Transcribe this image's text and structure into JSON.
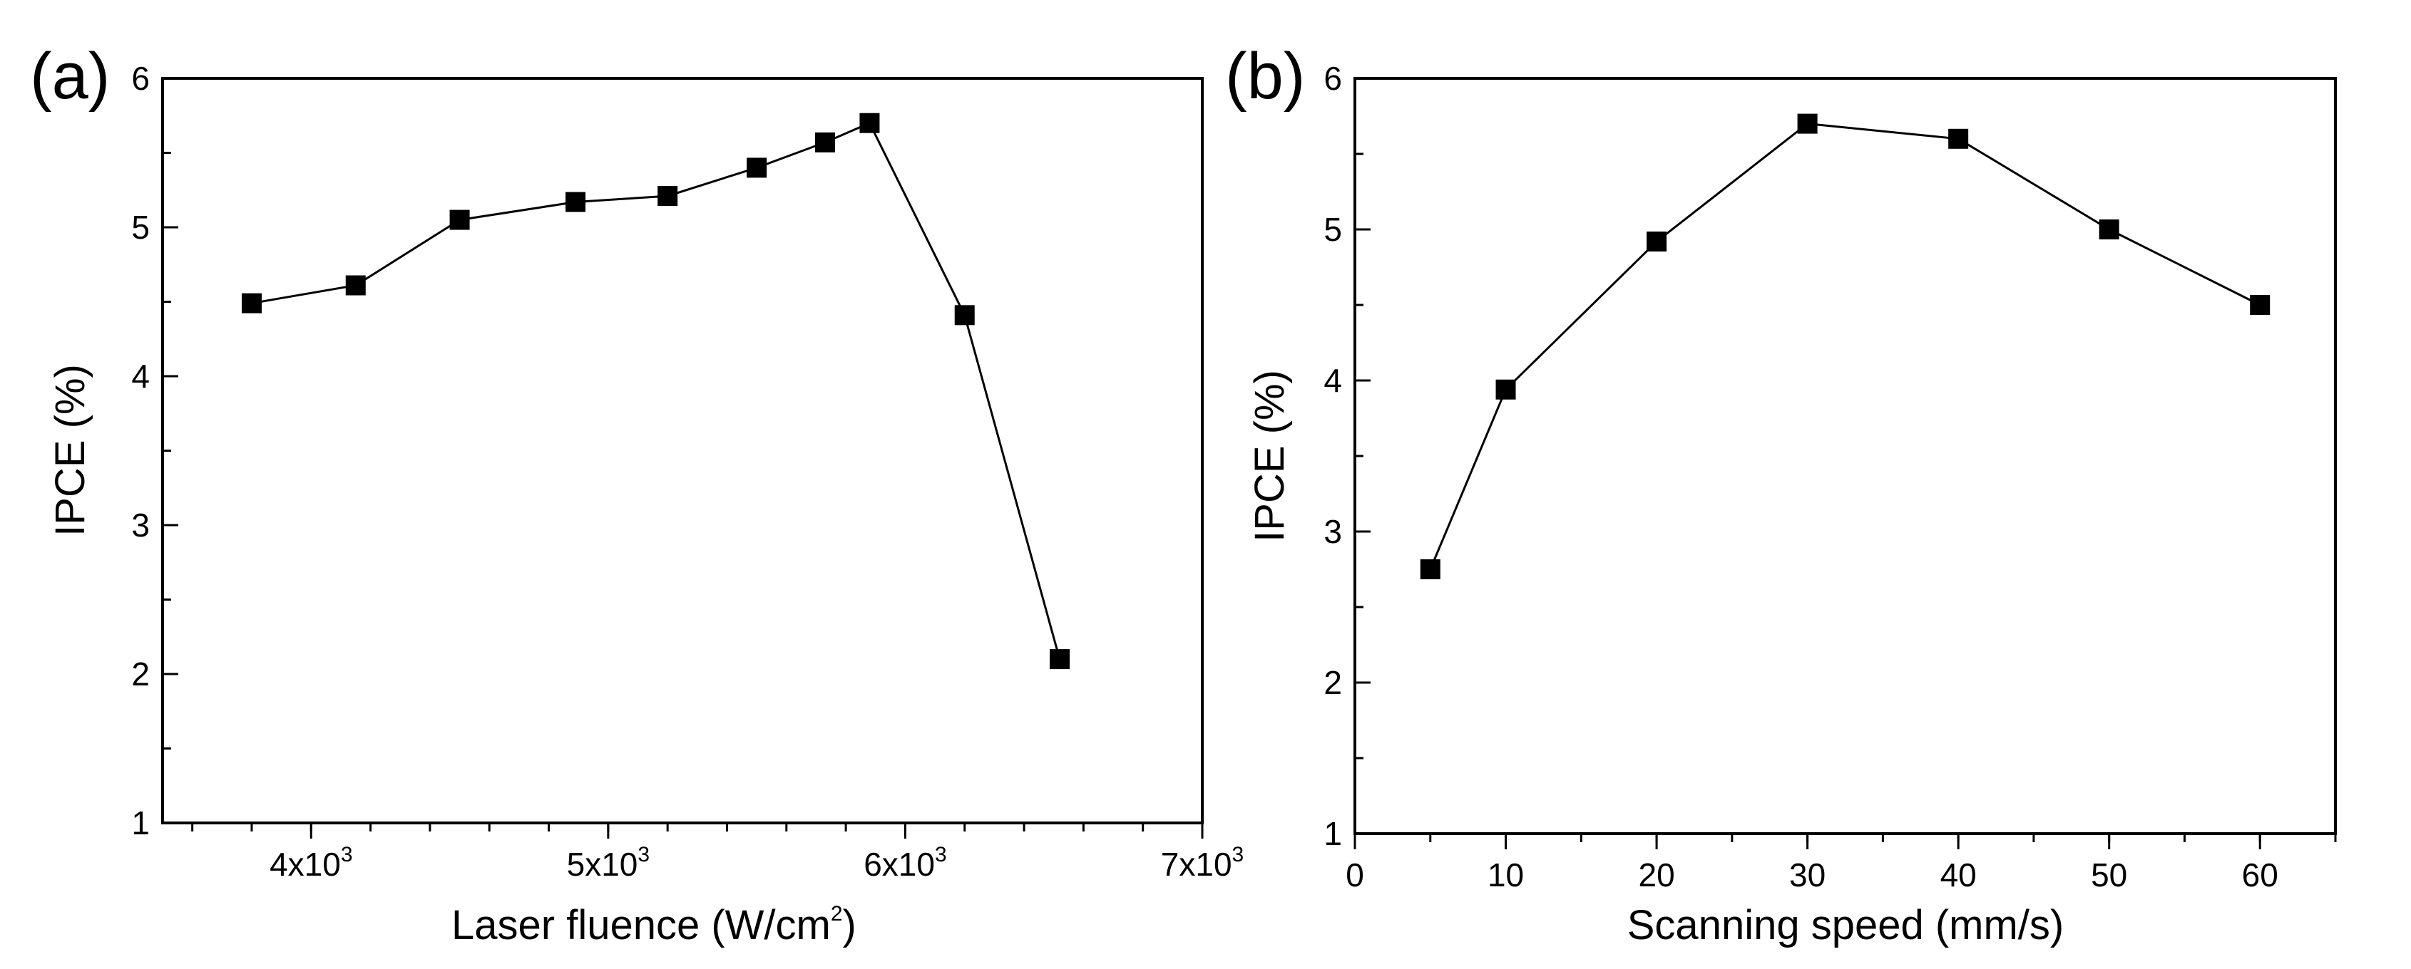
{
  "chart_data": [
    {
      "panel_label": "(a)",
      "type": "line",
      "marker": "square",
      "series_color": "#000000",
      "xlabel_parts": {
        "main": "Laser fluence (W/cm",
        "sup": "2",
        "end": ")"
      },
      "ylabel": "IPCE (%)",
      "xlim": [
        3500,
        7000
      ],
      "ylim": [
        1,
        6
      ],
      "x_major_ticks": [
        4000,
        5000,
        6000,
        7000
      ],
      "x_tick_labels": [
        {
          "base": "4x10",
          "exp": "3"
        },
        {
          "base": "5x10",
          "exp": "3"
        },
        {
          "base": "6x10",
          "exp": "3"
        },
        {
          "base": "7x10",
          "exp": "3"
        }
      ],
      "x_minor_step": 200,
      "y_major_ticks": [
        1,
        2,
        3,
        4,
        5,
        6
      ],
      "y_tick_labels": [
        "1",
        "2",
        "3",
        "4",
        "5",
        "6"
      ],
      "y_minor_step": 0.5,
      "grid": false,
      "x": [
        3800,
        4150,
        4500,
        4890,
        5200,
        5500,
        5730,
        5880,
        6200,
        6520
      ],
      "y": [
        4.49,
        4.61,
        5.05,
        5.17,
        5.21,
        5.4,
        5.57,
        5.7,
        4.41,
        2.1
      ]
    },
    {
      "panel_label": "(b)",
      "type": "line",
      "marker": "square",
      "series_color": "#000000",
      "xlabel": "Scanning speed (mm/s)",
      "ylabel": "IPCE (%)",
      "xlim": [
        0,
        65
      ],
      "ylim": [
        1,
        6
      ],
      "x_major_ticks": [
        0,
        10,
        20,
        30,
        40,
        50,
        60
      ],
      "x_tick_labels": [
        "0",
        "10",
        "20",
        "30",
        "40",
        "50",
        "60"
      ],
      "x_minor_step": 5,
      "y_major_ticks": [
        1,
        2,
        3,
        4,
        5,
        6
      ],
      "y_tick_labels": [
        "1",
        "2",
        "3",
        "4",
        "5",
        "6"
      ],
      "y_minor_step": 0.5,
      "grid": false,
      "x": [
        5,
        10,
        20,
        30,
        40,
        50,
        60
      ],
      "y": [
        2.75,
        3.94,
        4.92,
        5.7,
        5.6,
        5.0,
        4.5
      ]
    }
  ]
}
